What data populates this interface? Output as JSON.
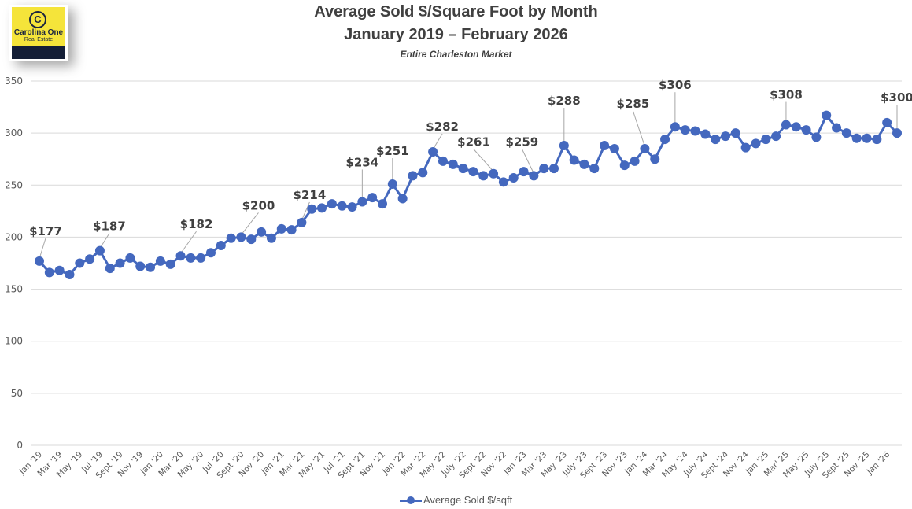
{
  "logo": {
    "brand": "Carolina One",
    "sub": "Real Estate",
    "icon": "copyright-c-icon",
    "colors": {
      "background": "#f5e43a",
      "band": "#141e36",
      "text": "#1b2540"
    }
  },
  "colors": {
    "series": "#4468be",
    "grid": "#d9d9d9",
    "text": "#404040",
    "axis_text": "#595959"
  },
  "chart_data": {
    "type": "line",
    "title": "Average Sold $/Square Foot by Month",
    "subtitle": "January 2019 – February 2026",
    "caption": "Entire Charleston Market",
    "xlabel": "",
    "ylabel": "",
    "ylim": [
      0,
      350
    ],
    "yticks": [
      0,
      50,
      100,
      150,
      200,
      250,
      300,
      350
    ],
    "grid": true,
    "legend_position": "bottom",
    "x_tick_labels": [
      "Jan '19",
      "Mar '19",
      "May '19",
      "Jul '19",
      "Sept '19",
      "Nov '19",
      "Jan '20",
      "Mar '20",
      "May '20",
      "Jul '20",
      "Sept '20",
      "Nov '20",
      "Jan '21",
      "Mar '21",
      "May '21",
      "Jul '21",
      "Sept '21",
      "Nov '21",
      "Jan '22",
      "Mar '22",
      "May '22",
      "July '22",
      "Sept '22",
      "Nov '22",
      "Jan '23",
      "Mar '23",
      "May '23",
      "July '23",
      "Sept '23",
      "Nov '23",
      "Jan '24",
      "Mar '24",
      "May '24",
      "July '24",
      "Sept '24",
      "Nov '24",
      "Jan '25",
      "Mar' 25",
      "May '25",
      "July '25",
      "Sept '25",
      "Nov '25",
      "Jan '26"
    ],
    "x": [
      "Jan 2019",
      "Feb 2019",
      "Mar 2019",
      "Apr 2019",
      "May 2019",
      "Jun 2019",
      "Jul 2019",
      "Aug 2019",
      "Sep 2019",
      "Oct 2019",
      "Nov 2019",
      "Dec 2019",
      "Jan 2020",
      "Feb 2020",
      "Mar 2020",
      "Apr 2020",
      "May 2020",
      "Jun 2020",
      "Jul 2020",
      "Aug 2020",
      "Sep 2020",
      "Oct 2020",
      "Nov 2020",
      "Dec 2020",
      "Jan 2021",
      "Feb 2021",
      "Mar 2021",
      "Apr 2021",
      "May 2021",
      "Jun 2021",
      "Jul 2021",
      "Aug 2021",
      "Sep 2021",
      "Oct 2021",
      "Nov 2021",
      "Dec 2021",
      "Jan 2022",
      "Feb 2022",
      "Mar 2022",
      "Apr 2022",
      "May 2022",
      "Jun 2022",
      "Jul 2022",
      "Aug 2022",
      "Sep 2022",
      "Oct 2022",
      "Nov 2022",
      "Dec 2022",
      "Jan 2023",
      "Feb 2023",
      "Mar 2023",
      "Apr 2023",
      "May 2023",
      "Jun 2023",
      "Jul 2023",
      "Aug 2023",
      "Sep 2023",
      "Oct 2023",
      "Nov 2023",
      "Dec 2023",
      "Jan 2024",
      "Feb 2024",
      "Mar 2024",
      "Apr 2024",
      "May 2024",
      "Jun 2024",
      "Jul 2024",
      "Aug 2024",
      "Sep 2024",
      "Oct 2024",
      "Nov 2024",
      "Dec 2024",
      "Jan 2025",
      "Feb 2025",
      "Mar 2025",
      "Apr 2025",
      "May 2025",
      "Jun 2025",
      "Jul 2025",
      "Aug 2025",
      "Sep 2025",
      "Oct 2025",
      "Nov 2025",
      "Dec 2025",
      "Jan 2026",
      "Feb 2026"
    ],
    "series": [
      {
        "name": "Average Sold $/sqft",
        "values": [
          177,
          166,
          168,
          164,
          175,
          179,
          187,
          170,
          175,
          180,
          172,
          171,
          177,
          174,
          182,
          180,
          180,
          185,
          192,
          199,
          200,
          198,
          205,
          199,
          208,
          207,
          214,
          227,
          228,
          232,
          230,
          229,
          234,
          238,
          232,
          251,
          237,
          259,
          262,
          282,
          273,
          270,
          266,
          263,
          259,
          261,
          253,
          257,
          263,
          259,
          266,
          266,
          288,
          274,
          270,
          266,
          288,
          285,
          269,
          273,
          285,
          275,
          294,
          306,
          303,
          302,
          299,
          294,
          297,
          300,
          286,
          290,
          294,
          297,
          308,
          306,
          303,
          296,
          317,
          305,
          300,
          295,
          295,
          294,
          310,
          300
        ]
      }
    ],
    "annotations": [
      {
        "index": 0,
        "label": "$177"
      },
      {
        "index": 6,
        "label": "$187"
      },
      {
        "index": 14,
        "label": "$182"
      },
      {
        "index": 20,
        "label": "$200"
      },
      {
        "index": 26,
        "label": "$214"
      },
      {
        "index": 32,
        "label": "$234"
      },
      {
        "index": 35,
        "label": "$251"
      },
      {
        "index": 39,
        "label": "$282"
      },
      {
        "index": 45,
        "label": "$261"
      },
      {
        "index": 49,
        "label": "$259"
      },
      {
        "index": 52,
        "label": "$288"
      },
      {
        "index": 60,
        "label": "$285"
      },
      {
        "index": 63,
        "label": "$306"
      },
      {
        "index": 74,
        "label": "$308"
      },
      {
        "index": 85,
        "label": "$300"
      }
    ]
  },
  "legend": {
    "label": "Average Sold $/sqft"
  }
}
